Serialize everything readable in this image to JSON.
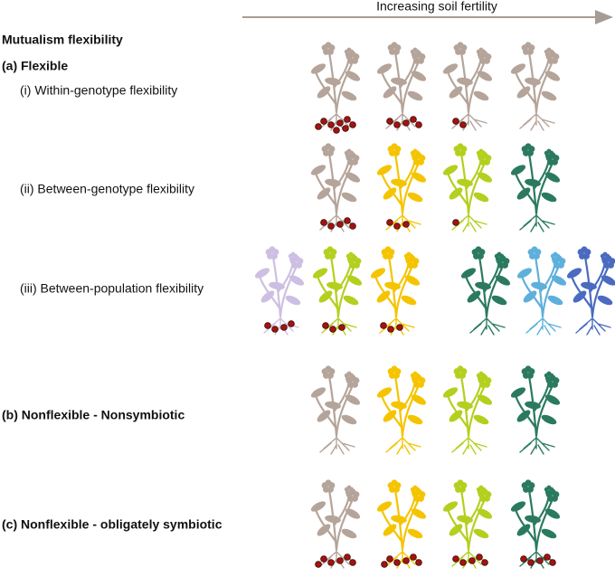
{
  "arrow_label": "Increasing soil fertility",
  "heading": "Mutualism flexibility",
  "sections": [
    {
      "label": "(a) Flexible",
      "rows": [
        {
          "label": "(i) Within-genotype flexibility"
        },
        {
          "label": "(ii) Between-genotype flexibility"
        },
        {
          "label": "(iii) Between-population flexibility"
        }
      ]
    },
    {
      "label": "(b) Nonflexible - Nonsymbiotic"
    },
    {
      "label": "(c) Nonflexible - obligately symbiotic"
    }
  ]
}
